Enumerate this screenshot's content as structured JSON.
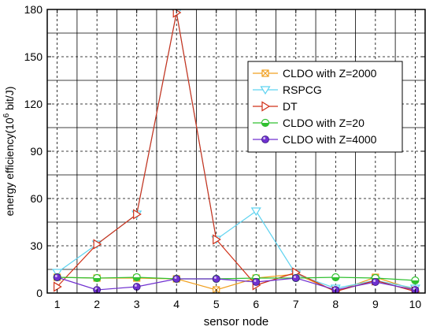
{
  "chart_data": {
    "type": "line",
    "title": "",
    "xlabel": "sensor node",
    "ylabel": {
      "prefix": "energy efficiency(10",
      "superscript": "6",
      "suffix": " bit/J)"
    },
    "x": [
      1,
      2,
      3,
      4,
      5,
      6,
      7,
      8,
      9,
      10
    ],
    "x_ticks": [
      "1",
      "2",
      "3",
      "4",
      "5",
      "6",
      "7",
      "8",
      "9",
      "10"
    ],
    "xlim": [
      0.75,
      10.25
    ],
    "ylim": [
      0,
      180
    ],
    "y_ticks": [
      "0",
      "30",
      "60",
      "90",
      "120",
      "150",
      "180"
    ],
    "grid": true,
    "legend_position": "top-right",
    "series": [
      {
        "name": "CLDO with Z=2000",
        "marker": "box-x",
        "color": "#f0a020",
        "values": [
          10,
          9.5,
          9.5,
          9,
          2,
          9.5,
          12,
          1,
          10,
          2
        ]
      },
      {
        "name": "RSPCG",
        "marker": "triangle-down",
        "color": "#5fd3f0",
        "values": [
          13,
          31,
          50,
          178,
          34,
          52,
          12,
          3,
          8,
          3
        ]
      },
      {
        "name": "DT",
        "marker": "triangle-right",
        "color": "#d03018",
        "values": [
          4,
          31,
          50,
          178,
          34,
          5,
          13,
          1,
          8,
          1
        ]
      },
      {
        "name": "CLDO with Z=20",
        "marker": "circle-half",
        "color": "#30c030",
        "values": [
          10,
          9.5,
          10,
          9,
          9,
          9.5,
          9.5,
          10,
          9.5,
          8
        ]
      },
      {
        "name": "CLDO with Z=4000",
        "marker": "circle-filled",
        "color": "#7030d0",
        "values": [
          10,
          2,
          4,
          9,
          9,
          7,
          9.5,
          2,
          7,
          2
        ]
      }
    ]
  }
}
